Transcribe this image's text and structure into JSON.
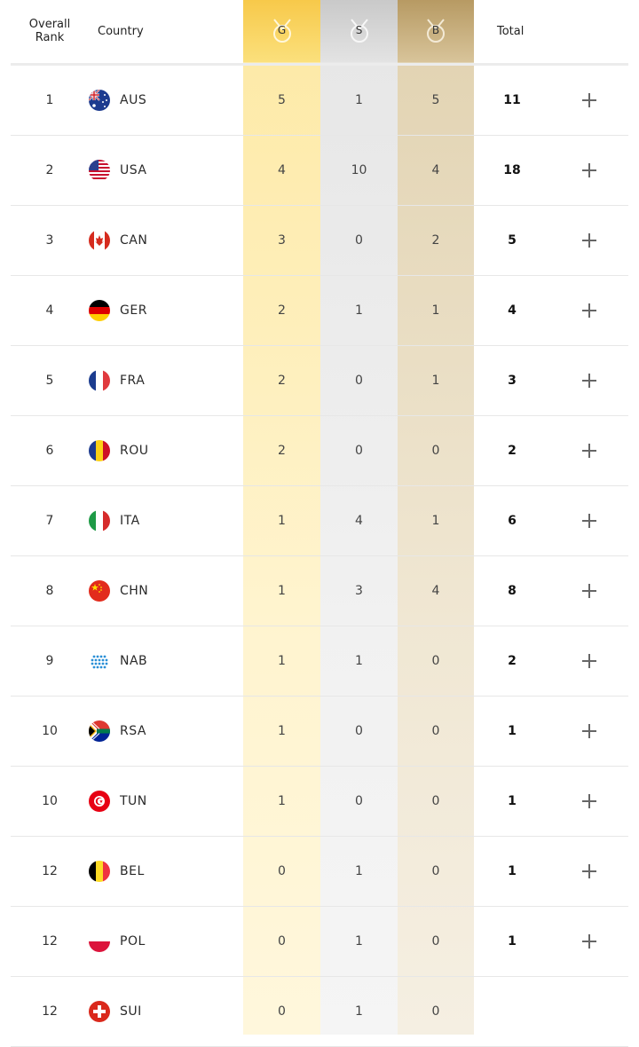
{
  "header": {
    "rank_label_line1": "Overall",
    "rank_label_line2": "Rank",
    "country_label": "Country",
    "gold_label": "G",
    "silver_label": "S",
    "bronze_label": "B",
    "total_label": "Total"
  },
  "colors": {
    "gold": "#f7c94a",
    "silver": "#c9c9c9",
    "bronze": "#b79a63"
  },
  "rows": [
    {
      "rank": "1",
      "code": "AUS",
      "g": "5",
      "s": "1",
      "b": "5",
      "total": "11",
      "flag": "aus-flag-icon"
    },
    {
      "rank": "2",
      "code": "USA",
      "g": "4",
      "s": "10",
      "b": "4",
      "total": "18",
      "flag": "usa-flag-icon"
    },
    {
      "rank": "3",
      "code": "CAN",
      "g": "3",
      "s": "0",
      "b": "2",
      "total": "5",
      "flag": "can-flag-icon"
    },
    {
      "rank": "4",
      "code": "GER",
      "g": "2",
      "s": "1",
      "b": "1",
      "total": "4",
      "flag": "ger-flag-icon"
    },
    {
      "rank": "5",
      "code": "FRA",
      "g": "2",
      "s": "0",
      "b": "1",
      "total": "3",
      "flag": "fra-flag-icon"
    },
    {
      "rank": "6",
      "code": "ROU",
      "g": "2",
      "s": "0",
      "b": "0",
      "total": "2",
      "flag": "rou-flag-icon"
    },
    {
      "rank": "7",
      "code": "ITA",
      "g": "1",
      "s": "4",
      "b": "1",
      "total": "6",
      "flag": "ita-flag-icon"
    },
    {
      "rank": "8",
      "code": "CHN",
      "g": "1",
      "s": "3",
      "b": "4",
      "total": "8",
      "flag": "chn-flag-icon"
    },
    {
      "rank": "9",
      "code": "NAB",
      "g": "1",
      "s": "1",
      "b": "0",
      "total": "2",
      "flag": "nab-flag-icon"
    },
    {
      "rank": "10",
      "code": "RSA",
      "g": "1",
      "s": "0",
      "b": "0",
      "total": "1",
      "flag": "rsa-flag-icon"
    },
    {
      "rank": "10",
      "code": "TUN",
      "g": "1",
      "s": "0",
      "b": "0",
      "total": "1",
      "flag": "tun-flag-icon"
    },
    {
      "rank": "12",
      "code": "BEL",
      "g": "0",
      "s": "1",
      "b": "0",
      "total": "1",
      "flag": "bel-flag-icon"
    },
    {
      "rank": "12",
      "code": "POL",
      "g": "0",
      "s": "1",
      "b": "0",
      "total": "1",
      "flag": "pol-flag-icon"
    },
    {
      "rank": "12",
      "code": "SUI",
      "g": "0",
      "s": "1",
      "b": "0",
      "total": "",
      "flag": "sui-flag-icon"
    }
  ]
}
